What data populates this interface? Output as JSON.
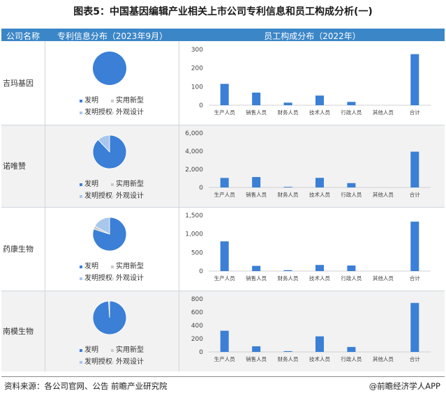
{
  "title": "图表5：中国基因编辑产业相关上市公司专利信息和员工构成分析(一)",
  "header": {
    "col1": "公司名称",
    "col2": "专利信息分布（2023年9月）",
    "col3": "员工构成分布（2022年）"
  },
  "colors": {
    "header_bg": "#3b86c7",
    "pie_main": "#3b7fd6",
    "pie_light": "#a9c7ec",
    "bar": "#3b7fd6"
  },
  "pie_legend": [
    "发明",
    "实用新型",
    "发明授权",
    "外观设计"
  ],
  "chart_data": [
    {
      "company": "吉玛基因",
      "type": "pie",
      "slices": [
        {
          "label": "发明",
          "value": 100
        },
        {
          "label": "实用新型",
          "value": 0
        },
        {
          "label": "发明授权",
          "value": 0
        },
        {
          "label": "外观设计",
          "value": 0
        }
      ],
      "bar": {
        "type": "bar",
        "categories": [
          "生产人员",
          "销售人员",
          "财务人员",
          "技术人员",
          "行政人员",
          "其他人员",
          "合计"
        ],
        "values": [
          115,
          68,
          14,
          52,
          18,
          0,
          275
        ],
        "ylim": [
          0,
          300
        ],
        "yticks": [
          0,
          100,
          200,
          300
        ],
        "ytick_labels": [
          "0",
          "100",
          "200",
          "300"
        ]
      }
    },
    {
      "company": "诺唯赞",
      "type": "pie",
      "slices": [
        {
          "label": "发明",
          "value": 88
        },
        {
          "label": "实用新型",
          "value": 0
        },
        {
          "label": "发明授权",
          "value": 12
        },
        {
          "label": "外观设计",
          "value": 0
        }
      ],
      "bar": {
        "type": "bar",
        "categories": [
          "生产人员",
          "销售人员",
          "财务人员",
          "技术人员",
          "行政人员",
          "其他人员",
          "合计"
        ],
        "values": [
          1050,
          1150,
          70,
          1060,
          480,
          0,
          3950
        ],
        "ylim": [
          0,
          6000
        ],
        "yticks": [
          0,
          2000,
          4000,
          6000
        ],
        "ytick_labels": [
          "0",
          "2,000",
          "4,000",
          "6,000"
        ]
      }
    },
    {
      "company": "药康生物",
      "type": "pie",
      "slices": [
        {
          "label": "发明",
          "value": 80
        },
        {
          "label": "实用新型",
          "value": 3
        },
        {
          "label": "发明授权",
          "value": 17
        },
        {
          "label": "外观设计",
          "value": 0
        }
      ],
      "bar": {
        "type": "bar",
        "categories": [
          "生产人员",
          "销售人员",
          "财务人员",
          "技术人员",
          "行政人员",
          "其他人员",
          "合计"
        ],
        "values": [
          800,
          140,
          25,
          165,
          150,
          0,
          1330
        ],
        "ylim": [
          0,
          1500
        ],
        "yticks": [
          0,
          500,
          1000,
          1500
        ],
        "ytick_labels": [
          "0",
          "500",
          "1,000",
          "1,500"
        ]
      }
    },
    {
      "company": "南模生物",
      "type": "pie",
      "slices": [
        {
          "label": "发明",
          "value": 99
        },
        {
          "label": "实用新型",
          "value": 0
        },
        {
          "label": "发明授权",
          "value": 1
        },
        {
          "label": "外观设计",
          "value": 0
        }
      ],
      "bar": {
        "type": "bar",
        "categories": [
          "生产人员",
          "销售人员",
          "财务人员",
          "技术人员",
          "行政人员",
          "其他人员",
          "合计"
        ],
        "values": [
          320,
          85,
          12,
          235,
          75,
          0,
          740
        ],
        "ylim": [
          0,
          800
        ],
        "yticks": [
          0,
          200,
          400,
          600,
          800
        ],
        "ytick_labels": [
          "0",
          "200",
          "400",
          "600",
          "800"
        ]
      }
    }
  ],
  "footer": {
    "source": "资料来源：各公司官网、公告 前瞻产业研究院",
    "brand": "@前瞻经济学人APP"
  }
}
